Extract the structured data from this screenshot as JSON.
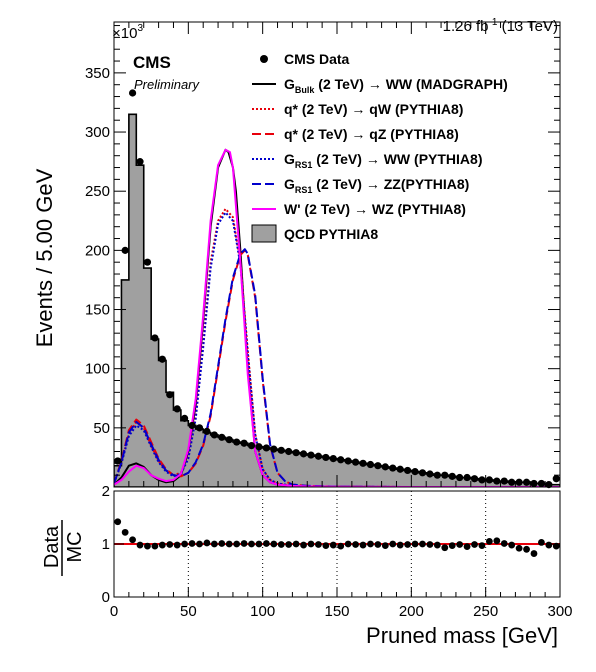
{
  "header": {
    "exponent_base": "×10",
    "exponent_power": "3",
    "lumi_value": "1.26 fb",
    "lumi_exp": "-1",
    "lumi_energy": " (13 TeV)",
    "cms": "CMS",
    "preliminary": "Preliminary"
  },
  "legend": {
    "data": "CMS Data",
    "bulk": {
      "main": "G",
      "sub": "Bulk",
      "rest": " (2 TeV) → WW (MADGRAPH)"
    },
    "qw": {
      "main": "q* (2 TeV) → qW (PYTHIA8)"
    },
    "qz": {
      "main": "q* (2 TeV) → qZ (PYTHIA8)"
    },
    "rsww": {
      "main": "G",
      "sub": "RS1",
      "rest": " (2 TeV) → WW (PYTHIA8)"
    },
    "rszz": {
      "main": "G",
      "sub": "RS1",
      "rest": " (2 TeV) → ZZ(PYTHIA8)"
    },
    "wprime": {
      "main": "W' (2 TeV) → WZ (PYTHIA8)"
    },
    "qcd": "QCD PYTHIA8"
  },
  "chart_data": [
    {
      "type": "line",
      "panel": "main",
      "xlabel": "Pruned mass [GeV]",
      "ylabel": "Events / 5.00 GeV",
      "xlim": [
        0,
        300
      ],
      "ylim": [
        0,
        393
      ],
      "y_units": "×10^3",
      "xticks": [
        0,
        50,
        100,
        150,
        200,
        250,
        300
      ],
      "yticks": [
        50,
        100,
        150,
        200,
        250,
        300,
        350
      ],
      "qcd_histogram": {
        "name": "QCD PYTHIA8",
        "bin_edges": [
          0,
          5,
          10,
          15,
          20,
          25,
          30,
          35,
          40,
          45,
          50,
          55,
          60,
          65,
          70,
          75,
          80,
          85,
          90,
          95,
          100,
          105,
          110,
          115,
          120,
          125,
          130,
          135,
          140,
          145,
          150,
          155,
          160,
          165,
          170,
          175,
          180,
          185,
          190,
          195,
          200,
          205,
          210,
          215,
          220,
          225,
          230,
          235,
          240,
          245,
          250,
          255,
          260,
          265,
          270,
          275,
          280,
          285,
          290,
          295,
          300
        ],
        "values": [
          18,
          175,
          315,
          272,
          185,
          125,
          107,
          80,
          65,
          56,
          52,
          49,
          46,
          44,
          42,
          40,
          38,
          37,
          35,
          34,
          33,
          32,
          31,
          30,
          29,
          28,
          27,
          26,
          25,
          24,
          23,
          22,
          21,
          20,
          19,
          18,
          17,
          16,
          15,
          14,
          13,
          12,
          11,
          10,
          10,
          9,
          8,
          8,
          7,
          6,
          6,
          5,
          5,
          4,
          4,
          4,
          3,
          3,
          2,
          2
        ]
      },
      "data_points": {
        "name": "CMS Data",
        "x": [
          2.5,
          7.5,
          12.5,
          17.5,
          22.5,
          27.5,
          32.5,
          37.5,
          42.5,
          47.5,
          52.5,
          57.5,
          62.5,
          67.5,
          72.5,
          77.5,
          82.5,
          87.5,
          92.5,
          97.5,
          102.5,
          107.5,
          112.5,
          117.5,
          122.5,
          127.5,
          132.5,
          137.5,
          142.5,
          147.5,
          152.5,
          157.5,
          162.5,
          167.5,
          172.5,
          177.5,
          182.5,
          187.5,
          192.5,
          197.5,
          202.5,
          207.5,
          212.5,
          217.5,
          222.5,
          227.5,
          232.5,
          237.5,
          242.5,
          247.5,
          252.5,
          257.5,
          262.5,
          267.5,
          272.5,
          277.5,
          282.5,
          287.5,
          292.5,
          297.5
        ],
        "y": [
          22,
          200,
          333,
          275,
          190,
          126,
          108,
          78,
          66,
          58,
          52,
          50,
          47,
          44,
          42,
          40,
          38,
          37,
          35,
          34,
          33,
          32,
          31,
          30,
          29,
          28,
          27,
          26,
          25,
          24,
          23,
          22,
          21,
          20,
          19,
          18,
          17,
          16,
          15,
          14,
          13,
          12,
          11,
          10,
          10,
          9,
          8,
          8,
          7,
          6,
          6,
          5,
          5,
          4,
          4,
          4,
          3,
          3,
          2,
          7
        ]
      },
      "signals": [
        {
          "name": "G_Bulk (2 TeV) → WW (MADGRAPH)",
          "color": "#000000",
          "dash": "solid",
          "x": [
            0,
            5,
            10,
            15,
            20,
            25,
            30,
            35,
            40,
            45,
            50,
            55,
            60,
            65,
            70,
            75,
            77,
            80,
            82,
            85,
            90,
            95,
            100,
            105,
            110,
            120,
            130,
            140,
            150,
            160,
            180,
            200,
            250,
            300
          ],
          "y": [
            2,
            8,
            18,
            20,
            17,
            10,
            6,
            4,
            5,
            10,
            30,
            70,
            140,
            220,
            270,
            285,
            283,
            270,
            250,
            200,
            100,
            30,
            10,
            4,
            2,
            1,
            0.5,
            0.3,
            0.2,
            0.1,
            0,
            0,
            0,
            0
          ]
        },
        {
          "name": "q* (2 TeV) → qW (PYTHIA8)",
          "color": "#e8000b",
          "dash": "dotted",
          "x": [
            0,
            5,
            10,
            15,
            20,
            25,
            30,
            35,
            40,
            45,
            50,
            55,
            60,
            65,
            70,
            75,
            80,
            85,
            90,
            95,
            100,
            105,
            110,
            120,
            130,
            150,
            200,
            300
          ],
          "y": [
            3,
            20,
            45,
            55,
            50,
            35,
            22,
            14,
            10,
            12,
            25,
            60,
            120,
            190,
            225,
            235,
            228,
            190,
            115,
            45,
            15,
            6,
            3,
            1,
            0.5,
            0.2,
            0,
            0
          ]
        },
        {
          "name": "q* (2 TeV) → qZ (PYTHIA8)",
          "color": "#e8000b",
          "dash": "longdash",
          "x": [
            0,
            5,
            10,
            15,
            20,
            25,
            30,
            35,
            40,
            45,
            50,
            55,
            60,
            65,
            70,
            75,
            80,
            85,
            88,
            90,
            95,
            100,
            105,
            110,
            115,
            120,
            130,
            150,
            200,
            300
          ],
          "y": [
            3,
            22,
            48,
            57,
            52,
            38,
            24,
            15,
            10,
            9,
            12,
            20,
            35,
            60,
            100,
            140,
            175,
            196,
            200,
            196,
            160,
            90,
            35,
            12,
            5,
            2,
            1,
            0.3,
            0,
            0
          ]
        },
        {
          "name": "G_RS1 (2 TeV) → WW (PYTHIA8)",
          "color": "#0000cc",
          "dash": "dotted",
          "x": [
            0,
            5,
            10,
            15,
            20,
            25,
            30,
            35,
            40,
            45,
            50,
            55,
            60,
            65,
            70,
            75,
            80,
            85,
            90,
            95,
            100,
            105,
            110,
            120,
            130,
            150,
            200,
            300
          ],
          "y": [
            3,
            20,
            43,
            52,
            48,
            34,
            21,
            13,
            9,
            11,
            24,
            58,
            118,
            185,
            222,
            232,
            225,
            188,
            112,
            44,
            15,
            6,
            3,
            1,
            0.5,
            0.2,
            0,
            0
          ]
        },
        {
          "name": "G_RS1 (2 TeV) → ZZ(PYTHIA8)",
          "color": "#0000cc",
          "dash": "longdash",
          "x": [
            0,
            5,
            10,
            15,
            20,
            25,
            30,
            35,
            40,
            45,
            50,
            55,
            60,
            65,
            70,
            75,
            80,
            85,
            88,
            90,
            95,
            100,
            105,
            110,
            115,
            120,
            130,
            150,
            200,
            300
          ],
          "y": [
            3,
            21,
            46,
            55,
            50,
            36,
            23,
            14,
            10,
            9,
            12,
            21,
            36,
            62,
            102,
            142,
            177,
            197,
            201,
            197,
            162,
            92,
            36,
            12,
            5,
            2,
            1,
            0.3,
            0,
            0
          ]
        },
        {
          "name": "W' (2 TeV) → WZ (PYTHIA8)",
          "color": "#ff00ff",
          "dash": "solid",
          "x": [
            0,
            5,
            10,
            15,
            20,
            25,
            30,
            35,
            40,
            45,
            50,
            55,
            60,
            65,
            70,
            75,
            78,
            80,
            85,
            90,
            95,
            100,
            105,
            110,
            120,
            130,
            150,
            200,
            300
          ],
          "y": [
            2,
            6,
            13,
            18,
            16,
            10,
            7,
            5,
            6,
            11,
            32,
            75,
            145,
            225,
            272,
            285,
            283,
            270,
            190,
            95,
            30,
            10,
            4,
            2,
            1,
            0.5,
            0.2,
            0,
            0
          ]
        }
      ]
    },
    {
      "type": "scatter",
      "panel": "ratio",
      "xlabel": "Pruned mass [GeV]",
      "ylabel": "Data/MC",
      "xlim": [
        0,
        300
      ],
      "ylim": [
        0,
        2
      ],
      "yticks": [
        0,
        1,
        2
      ],
      "xticks": [
        0,
        50,
        100,
        150,
        200,
        250,
        300
      ],
      "reference_line": 1,
      "x": [
        2.5,
        7.5,
        12.5,
        17.5,
        22.5,
        27.5,
        32.5,
        37.5,
        42.5,
        47.5,
        52.5,
        57.5,
        62.5,
        67.5,
        72.5,
        77.5,
        82.5,
        87.5,
        92.5,
        97.5,
        102.5,
        107.5,
        112.5,
        117.5,
        122.5,
        127.5,
        132.5,
        137.5,
        142.5,
        147.5,
        152.5,
        157.5,
        162.5,
        167.5,
        172.5,
        177.5,
        182.5,
        187.5,
        192.5,
        197.5,
        202.5,
        207.5,
        212.5,
        217.5,
        222.5,
        227.5,
        232.5,
        237.5,
        242.5,
        247.5,
        252.5,
        257.5,
        262.5,
        267.5,
        272.5,
        277.5,
        282.5,
        287.5,
        292.5,
        297.5
      ],
      "y": [
        1.42,
        1.22,
        1.08,
        0.98,
        0.96,
        0.96,
        0.98,
        0.99,
        0.98,
        1.0,
        1.01,
        1.0,
        1.02,
        1.0,
        1.01,
        1.0,
        1.0,
        1.01,
        1.0,
        1.0,
        1.01,
        1.0,
        0.99,
        0.99,
        1.0,
        0.98,
        1.0,
        0.99,
        0.97,
        0.98,
        0.96,
        1.0,
        0.99,
        0.98,
        1.0,
        0.99,
        0.97,
        1.0,
        0.98,
        0.99,
        1.0,
        1.0,
        0.99,
        0.98,
        0.93,
        0.97,
        0.99,
        0.95,
        0.99,
        0.97,
        1.05,
        1.06,
        1.01,
        0.98,
        0.92,
        0.9,
        0.82,
        1.03,
        0.98,
        0.96
      ]
    }
  ]
}
